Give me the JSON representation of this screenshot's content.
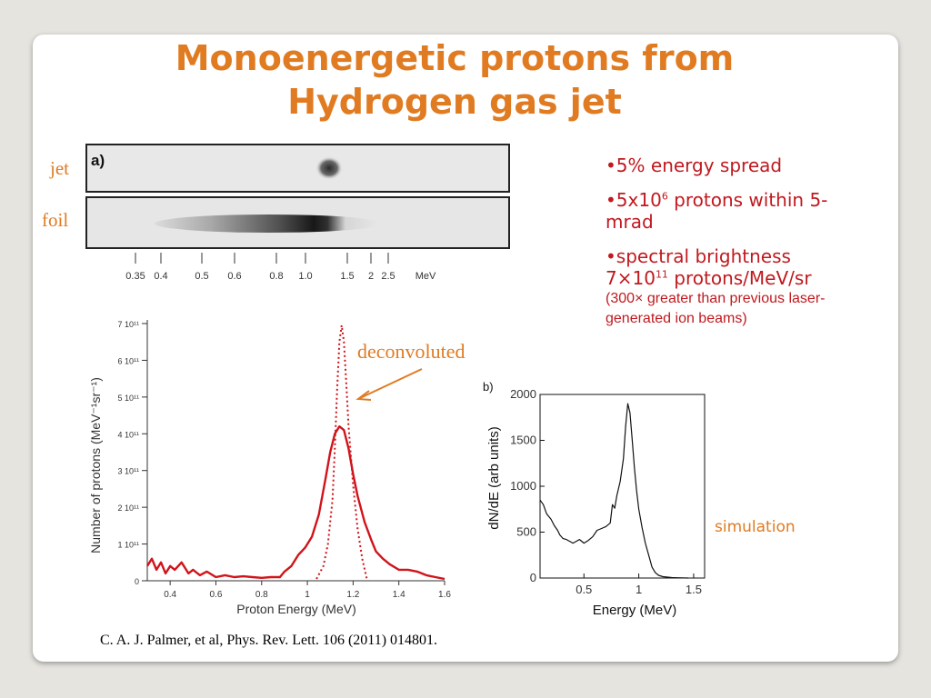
{
  "slide": {
    "title_line1": "Monoenergetic protons from",
    "title_line2": "Hydrogen gas jet",
    "label_jet": "jet",
    "label_foil": "foil",
    "panel_tag_a": "a)",
    "panel_tag_b": "b)",
    "annotation_deconvoluted": "deconvoluted",
    "annotation_simulation": "simulation",
    "citation": "C. A. J. Palmer, et al, Phys. Rev. Lett. 106 (2011) 014801.",
    "colors": {
      "accent": "#e07b22",
      "bullet_text": "#c0191f",
      "curve": "#d0141a"
    }
  },
  "bullets": {
    "b1": "•5% energy spread",
    "b2_pre": "•5x10",
    "b2_sup": "6",
    "b2_post": " protons within 5-mrad",
    "b3_line1": "•spectral brightness",
    "b3_pre": "7×10",
    "b3_sup": "11",
    "b3_post": " protons/MeV/sr",
    "b3_small": "(300× greater than previous laser- generated ion beams)"
  },
  "chart_data": [
    {
      "type": "line",
      "xlabel": "Proton Energy (MeV)",
      "ylabel": "Number of protons (MeV⁻¹sr⁻¹)",
      "xlim": [
        0.3,
        1.6
      ],
      "ylim": [
        0,
        700000000000.0
      ],
      "xticks": [
        0.4,
        0.6,
        0.8,
        1.0,
        1.2,
        1.4,
        1.6
      ],
      "xtick_labels": [
        "0.4",
        "0.6",
        "0.8",
        "1",
        "1.2",
        "1.4",
        "1.6"
      ],
      "yticks": [
        0,
        100000000000.0,
        200000000000.0,
        300000000000.0,
        400000000000.0,
        500000000000.0,
        600000000000.0,
        700000000000.0
      ],
      "ytick_labels": [
        "0",
        "1 10¹¹",
        "2 10¹¹",
        "3 10¹¹",
        "4 10¹¹",
        "5 10¹¹",
        "6 10¹¹",
        "7 10¹¹"
      ],
      "series": [
        {
          "style": "solid",
          "x": [
            0.3,
            0.32,
            0.34,
            0.36,
            0.38,
            0.4,
            0.42,
            0.45,
            0.48,
            0.5,
            0.53,
            0.56,
            0.6,
            0.64,
            0.68,
            0.72,
            0.76,
            0.8,
            0.84,
            0.88,
            0.9,
            0.93,
            0.96,
            0.99,
            1.02,
            1.05,
            1.08,
            1.1,
            1.12,
            1.14,
            1.16,
            1.18,
            1.2,
            1.22,
            1.25,
            1.28,
            1.3,
            1.33,
            1.36,
            1.4,
            1.44,
            1.48,
            1.52,
            1.56,
            1.6
          ],
          "y": [
            40000000000.0,
            60000000000.0,
            30000000000.0,
            50000000000.0,
            20000000000.0,
            40000000000.0,
            30000000000.0,
            50000000000.0,
            20000000000.0,
            30000000000.0,
            15000000000.0,
            25000000000.0,
            10000000000.0,
            15000000000.0,
            10000000000.0,
            12000000000.0,
            10000000000.0,
            8000000000.0,
            10000000000.0,
            10000000000.0,
            25000000000.0,
            40000000000.0,
            70000000000.0,
            90000000000.0,
            120000000000.0,
            180000000000.0,
            280000000000.0,
            350000000000.0,
            400000000000.0,
            420000000000.0,
            410000000000.0,
            360000000000.0,
            290000000000.0,
            230000000000.0,
            160000000000.0,
            110000000000.0,
            80000000000.0,
            60000000000.0,
            45000000000.0,
            30000000000.0,
            30000000000.0,
            25000000000.0,
            15000000000.0,
            10000000000.0,
            5000000000.0
          ]
        },
        {
          "style": "dotted",
          "x": [
            1.04,
            1.07,
            1.09,
            1.11,
            1.12,
            1.13,
            1.14,
            1.15,
            1.16,
            1.17,
            1.18,
            1.2,
            1.22,
            1.24,
            1.26
          ],
          "y": [
            5000000000.0,
            40000000000.0,
            100000000000.0,
            220000000000.0,
            360000000000.0,
            520000000000.0,
            650000000000.0,
            695000000000.0,
            650000000000.0,
            540000000000.0,
            420000000000.0,
            260000000000.0,
            140000000000.0,
            60000000000.0,
            5000000000.0
          ]
        }
      ]
    },
    {
      "type": "line",
      "xlabel": "Energy (MeV)",
      "ylabel": "dN/dE (arb units)",
      "xlim": [
        0.1,
        1.6
      ],
      "ylim": [
        0,
        2000
      ],
      "xticks": [
        0.5,
        1,
        1.5
      ],
      "xtick_labels": [
        "0.5",
        "1",
        "1.5"
      ],
      "yticks": [
        0,
        500,
        1000,
        1500,
        2000
      ],
      "ytick_labels": [
        "0",
        "500",
        "1000",
        "1500",
        "2000"
      ],
      "series": [
        {
          "x": [
            0.1,
            0.13,
            0.16,
            0.2,
            0.23,
            0.26,
            0.28,
            0.31,
            0.34,
            0.37,
            0.4,
            0.43,
            0.46,
            0.5,
            0.54,
            0.58,
            0.62,
            0.66,
            0.7,
            0.74,
            0.76,
            0.78,
            0.8,
            0.83,
            0.86,
            0.88,
            0.9,
            0.92,
            0.94,
            0.96,
            0.98,
            1.0,
            1.03,
            1.06,
            1.09,
            1.12,
            1.15,
            1.18,
            1.22,
            1.26,
            1.3,
            1.35,
            1.4,
            1.45
          ],
          "y": [
            850,
            800,
            700,
            640,
            570,
            520,
            470,
            430,
            420,
            400,
            380,
            400,
            420,
            380,
            410,
            450,
            520,
            540,
            560,
            600,
            800,
            760,
            900,
            1050,
            1300,
            1650,
            1900,
            1800,
            1500,
            1200,
            950,
            750,
            550,
            380,
            250,
            120,
            60,
            30,
            15,
            10,
            5,
            3,
            2,
            0
          ]
        }
      ]
    }
  ],
  "spectrum_strip": {
    "tick_labels": [
      "0.35",
      "0.4",
      "0.5",
      "0.6",
      "0.8",
      "1.0",
      "1.5",
      "2",
      "2.5",
      "MeV"
    ]
  }
}
